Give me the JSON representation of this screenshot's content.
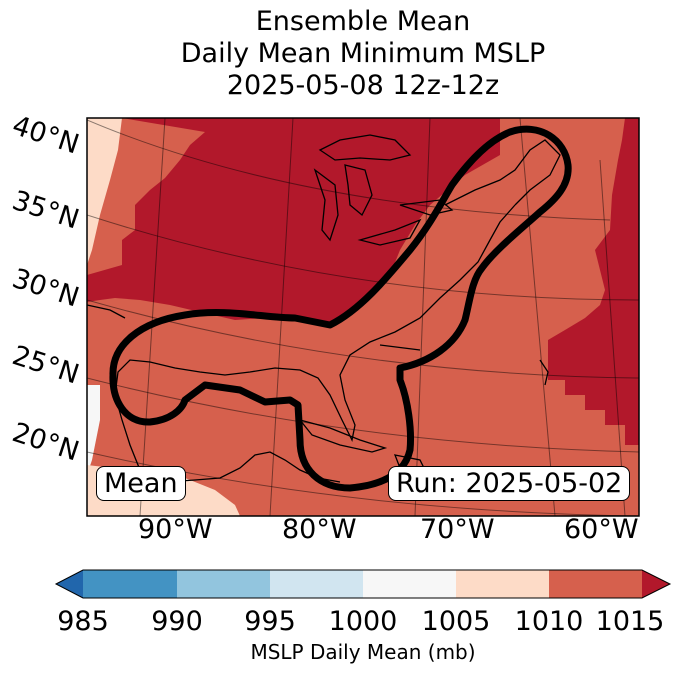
{
  "title": {
    "line1": "Ensemble Mean",
    "line2": "Daily Mean Minimum MSLP",
    "line3": "2025-05-08 12z-12z"
  },
  "map": {
    "lat_labels": [
      "40°N",
      "35°N",
      "30°N",
      "25°N",
      "20°N"
    ],
    "lon_labels": [
      "90°W",
      "80°W",
      "70°W",
      "60°W"
    ],
    "mean_label": "Mean",
    "run_label": "Run: 2025-05-02",
    "contour_level_mb": 1010
  },
  "colorbar": {
    "ticks": [
      "985",
      "990",
      "995",
      "1000",
      "1005",
      "1010",
      "1015"
    ],
    "label": "MSLP Daily Mean (mb)",
    "colors": [
      "#2166ac",
      "#4393c3",
      "#92c5de",
      "#d1e5f0",
      "#f7f7f7",
      "#fddbc7",
      "#d6604d",
      "#b2182b"
    ]
  },
  "colors": {
    "shade_1015_plus": "#b2182b",
    "shade_1010_1015": "#d6604d",
    "shade_1005_1010": "#fddbc7",
    "shade_1000_1005": "#f7f7f7"
  }
}
